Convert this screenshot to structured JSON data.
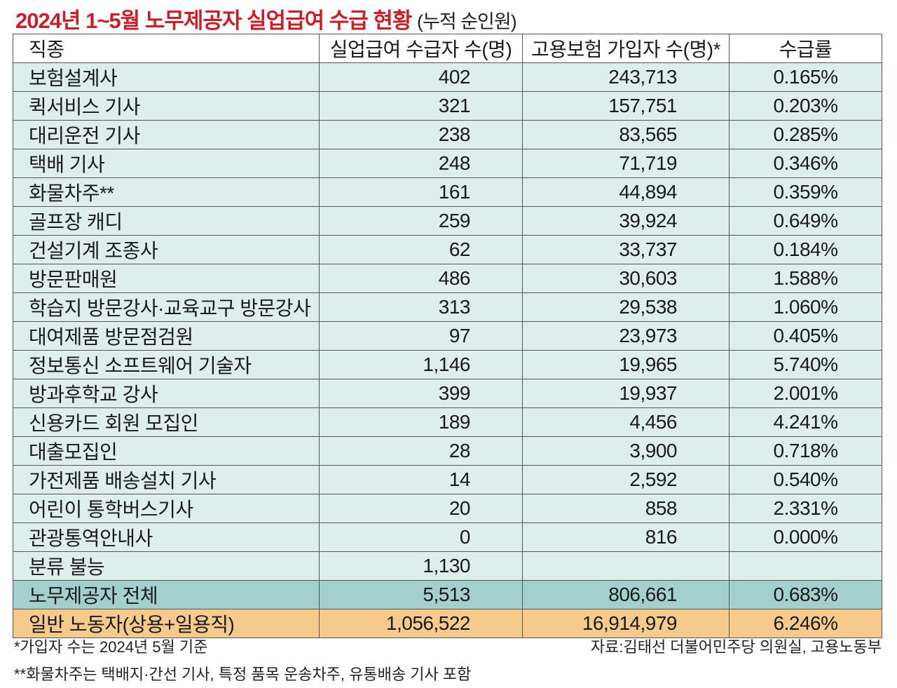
{
  "title": "2024년 1~5월 노무제공자 실업급여 수급 현황",
  "subtitle": "(누적 순인원)",
  "colors": {
    "title": "#c8202a",
    "row": "#deeeed",
    "total_row": "#a3cfcf",
    "general_row": "#f6c98c"
  },
  "headers": [
    "직종",
    "실업급여 수급자 수(명)",
    "고용보험 가입자 수(명)*",
    "수급률"
  ],
  "rows": [
    [
      "보험설계사",
      "402",
      "243,713",
      "0.165%"
    ],
    [
      "퀵서비스 기사",
      "321",
      "157,751",
      "0.203%"
    ],
    [
      "대리운전 기사",
      "238",
      "83,565",
      "0.285%"
    ],
    [
      "택배 기사",
      "248",
      "71,719",
      "0.346%"
    ],
    [
      "화물차주**",
      "161",
      "44,894",
      "0.359%"
    ],
    [
      "골프장 캐디",
      "259",
      "39,924",
      "0.649%"
    ],
    [
      "건설기계 조종사",
      "62",
      "33,737",
      "0.184%"
    ],
    [
      "방문판매원",
      "486",
      "30,603",
      "1.588%"
    ],
    [
      "학습지 방문강사·교육교구 방문강사",
      "313",
      "29,538",
      "1.060%"
    ],
    [
      "대여제품 방문점검원",
      "97",
      "23,973",
      "0.405%"
    ],
    [
      "정보통신 소프트웨어 기술자",
      "1,146",
      "19,965",
      "5.740%"
    ],
    [
      "방과후학교 강사",
      "399",
      "19,937",
      "2.001%"
    ],
    [
      "신용카드 회원 모집인",
      "189",
      "4,456",
      "4.241%"
    ],
    [
      "대출모집인",
      "28",
      "3,900",
      "0.718%"
    ],
    [
      "가전제품 배송설치 기사",
      "14",
      "2,592",
      "0.540%"
    ],
    [
      "어린이 통학버스기사",
      "20",
      "858",
      "2.331%"
    ],
    [
      "관광통역안내사",
      "0",
      "816",
      "0.000%"
    ],
    [
      "분류 불능",
      "1,130",
      "",
      ""
    ]
  ],
  "total": [
    "노무제공자 전체",
    "5,513",
    "806,661",
    "0.683%"
  ],
  "general": [
    "일반 노동자(상용+일용직)",
    "1,056,522",
    "16,914,979",
    "6.246%"
  ],
  "notes": {
    "note1": "*가입자 수는 2024년 5월 기준",
    "source": "자료:김태선 더불어민주당 의원실, 고용노동부",
    "note2": "**화물차주는 택배지·간선 기사, 특정 품목 운송차주, 유통배송 기사 포함"
  }
}
